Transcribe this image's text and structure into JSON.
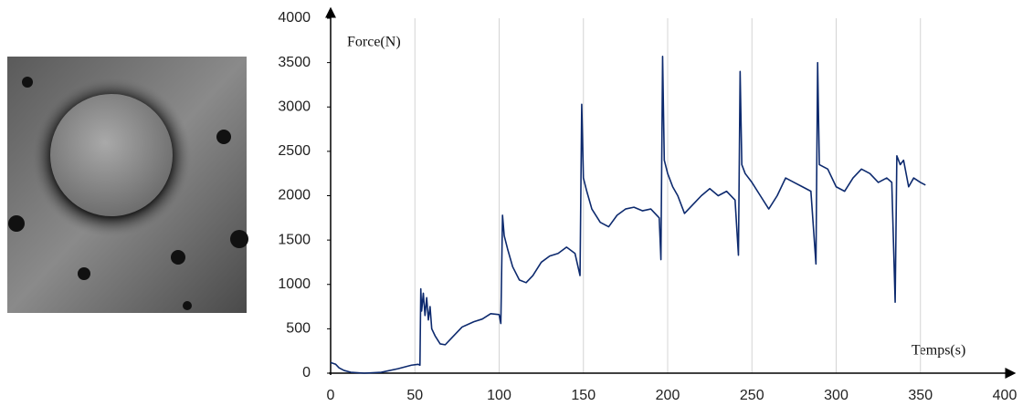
{
  "chart_data": {
    "type": "line",
    "y_label": "Force(N)",
    "x_label": "Temps(s)",
    "color": "#0d2a6e",
    "xlim": [
      0,
      400
    ],
    "ylim": [
      0,
      4000
    ],
    "xticks": [
      0,
      50,
      100,
      150,
      200,
      250,
      300,
      350,
      400
    ],
    "yticks": [
      0,
      500,
      1000,
      1500,
      2000,
      2500,
      3000,
      3500,
      4000
    ],
    "grid": true,
    "x": [
      0,
      3,
      5,
      8,
      12,
      20,
      30,
      40,
      48,
      52,
      53,
      53.5,
      54,
      55,
      56,
      57,
      58,
      59,
      60,
      62,
      65,
      68,
      72,
      78,
      85,
      90,
      95,
      100,
      101,
      102,
      103,
      105,
      108,
      112,
      116,
      120,
      125,
      130,
      135,
      140,
      145,
      148,
      149,
      150,
      152,
      155,
      160,
      165,
      170,
      175,
      180,
      185,
      190,
      195,
      196,
      197,
      198,
      200,
      203,
      206,
      210,
      215,
      220,
      225,
      230,
      235,
      240,
      242,
      243,
      244,
      246,
      250,
      255,
      260,
      265,
      270,
      275,
      280,
      285,
      288,
      289,
      290,
      295,
      300,
      305,
      310,
      315,
      320,
      325,
      330,
      333,
      335,
      336,
      338,
      340,
      343,
      346,
      350,
      353
    ],
    "values": [
      120,
      100,
      60,
      30,
      10,
      0,
      10,
      50,
      90,
      100,
      90,
      950,
      700,
      900,
      650,
      850,
      600,
      750,
      500,
      420,
      330,
      320,
      400,
      520,
      580,
      610,
      670,
      660,
      560,
      1780,
      1550,
      1400,
      1200,
      1050,
      1020,
      1100,
      1250,
      1320,
      1350,
      1420,
      1350,
      1100,
      3030,
      2200,
      2050,
      1850,
      1700,
      1650,
      1780,
      1850,
      1870,
      1830,
      1850,
      1750,
      1280,
      3570,
      2400,
      2250,
      2100,
      2000,
      1800,
      1900,
      2000,
      2080,
      2000,
      2050,
      1950,
      1330,
      3400,
      2350,
      2250,
      2150,
      2000,
      1850,
      2000,
      2200,
      2150,
      2100,
      2050,
      1230,
      3500,
      2350,
      2300,
      2100,
      2050,
      2200,
      2300,
      2250,
      2150,
      2200,
      2150,
      800,
      2450,
      2350,
      2400,
      2100,
      2200,
      2150,
      2120
    ]
  }
}
